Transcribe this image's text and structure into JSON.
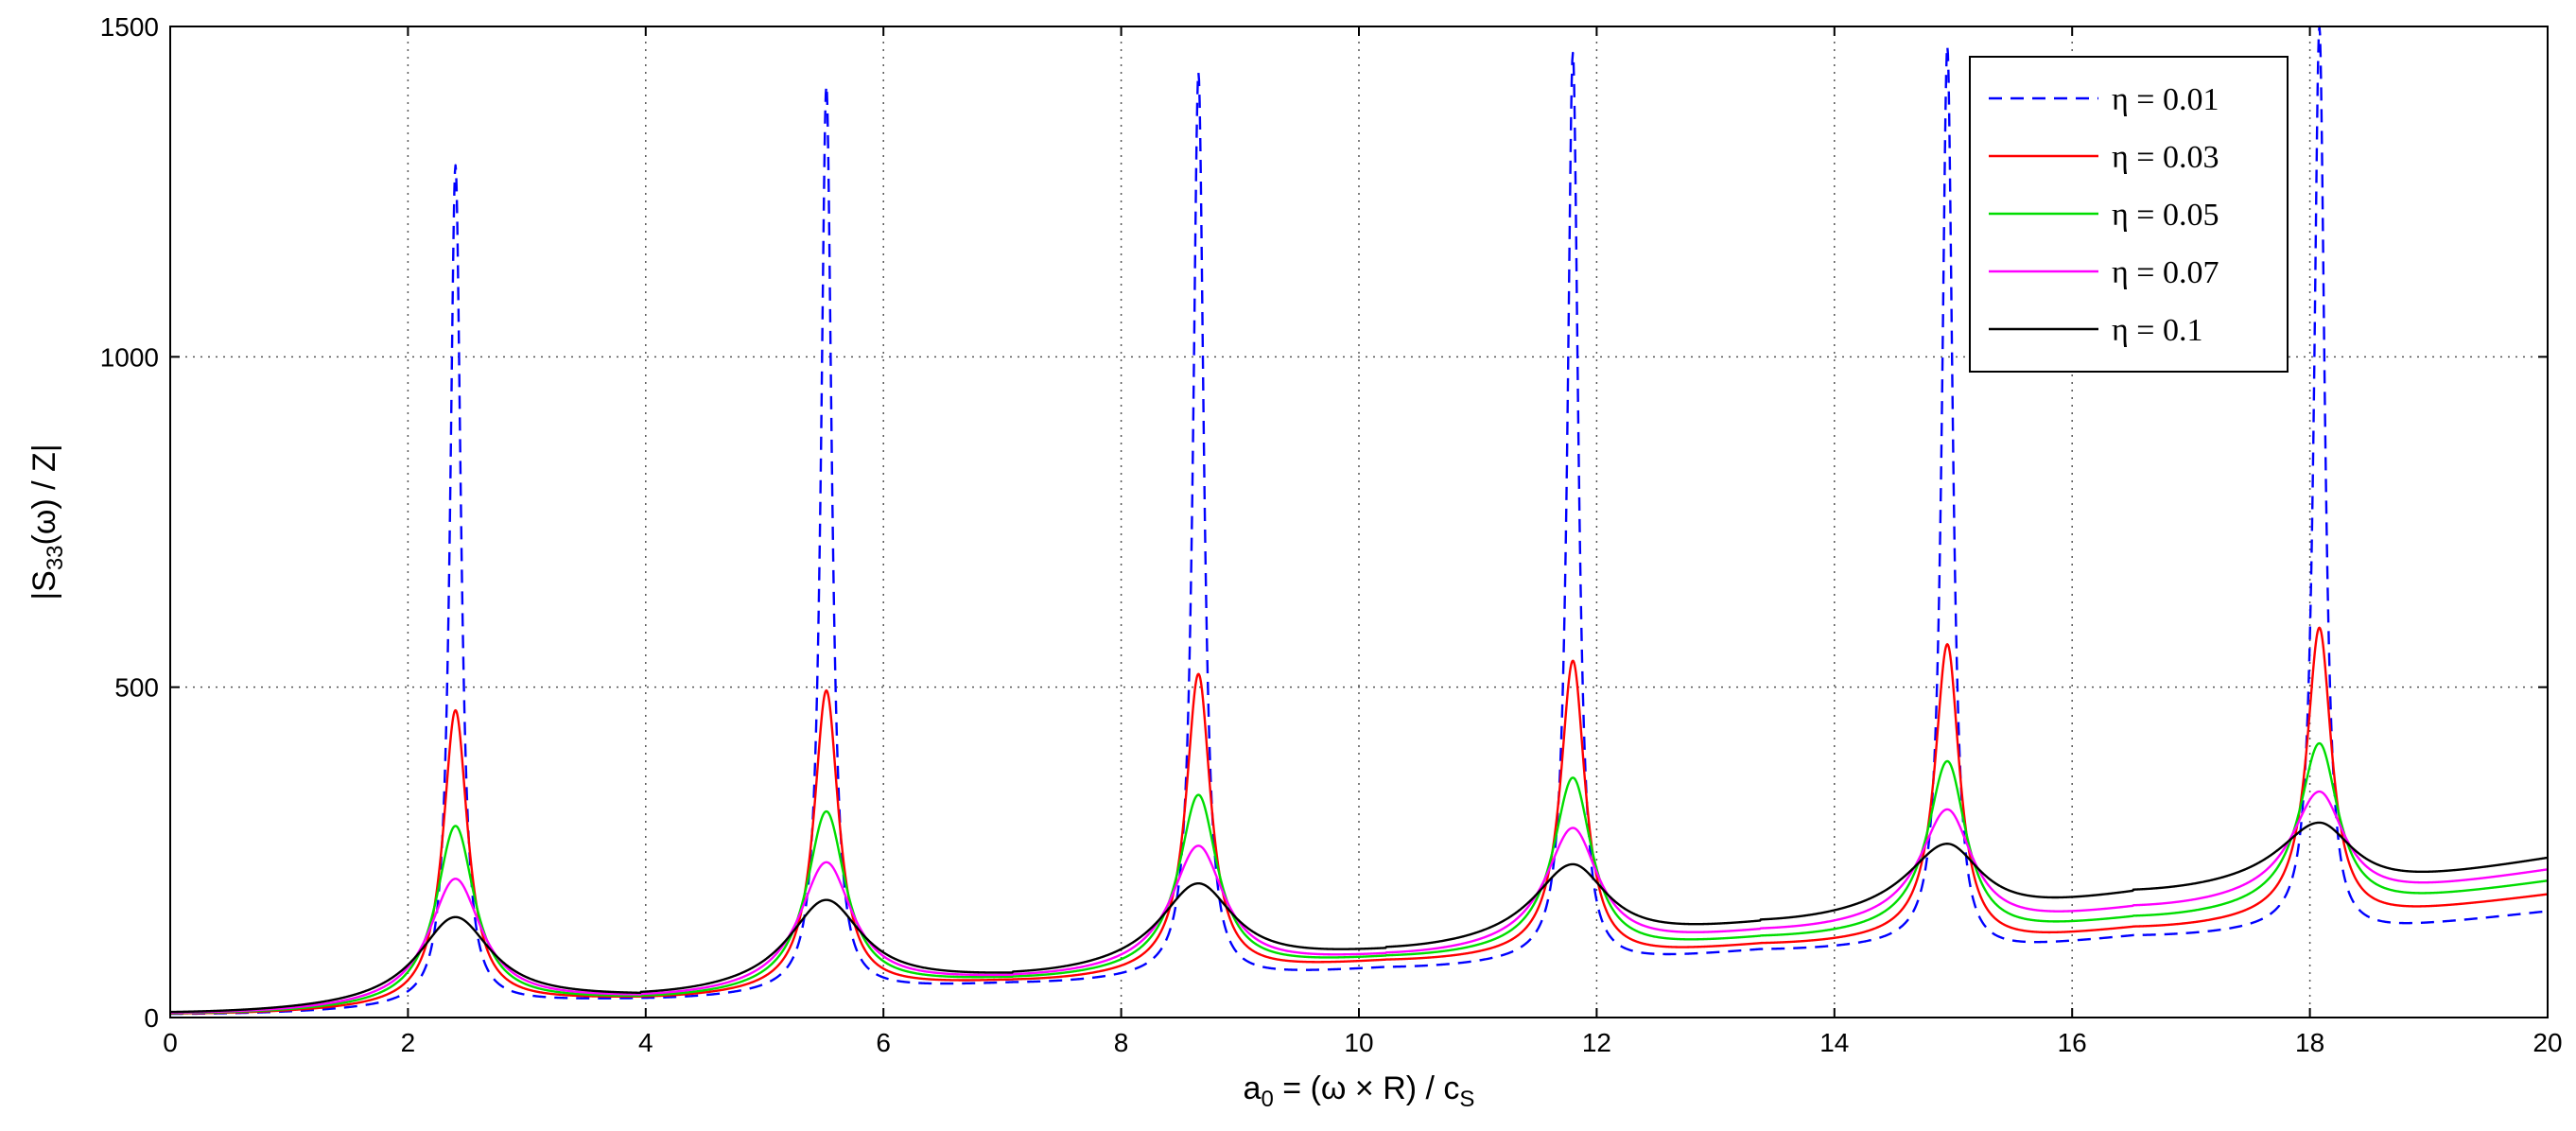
{
  "chart_data": {
    "type": "line",
    "title": "",
    "xlabel": {
      "main": "a",
      "sub": "0",
      "rest": " = (ω × R) / c",
      "sub2": "S"
    },
    "ylabel": {
      "pre": "|S",
      "sub": "33",
      "post": "(ω) / Z|"
    },
    "xlim": [
      0,
      20
    ],
    "ylim": [
      0,
      1500
    ],
    "xticks": [
      0,
      2,
      4,
      6,
      8,
      10,
      12,
      14,
      16,
      18,
      20
    ],
    "yticks": [
      0,
      500,
      1000,
      1500
    ],
    "xtick_labels": [
      "0",
      "2",
      "4",
      "6",
      "8",
      "10",
      "12",
      "14",
      "16",
      "18",
      "20"
    ],
    "ytick_labels": [
      "0",
      "500",
      "1000",
      "1500"
    ],
    "grid": true,
    "legend_position": "top-right",
    "resonance_peaks_x": [
      2.4,
      5.52,
      8.65,
      11.8,
      14.95,
      18.08
    ],
    "series": [
      {
        "name": "η = 0.01",
        "color": "#0000ff",
        "style": "dashed",
        "peak_values": [
          1290,
          1410,
          1430,
          1460,
          1470,
          1500
        ],
        "min_values": [
          28,
          52,
          75,
          102,
          123,
          148
        ],
        "end_value": 160
      },
      {
        "name": "η = 0.03",
        "color": "#ff0000",
        "style": "solid",
        "peak_values": [
          465,
          495,
          520,
          540,
          565,
          590
        ],
        "min_values": [
          29,
          55,
          85,
          110,
          135,
          175
        ],
        "end_value": 185
      },
      {
        "name": "η = 0.05",
        "color": "#00dd00",
        "style": "solid",
        "peak_values": [
          290,
          312,
          337,
          363,
          388,
          415
        ],
        "min_values": [
          29,
          58,
          90,
          120,
          150,
          195
        ],
        "end_value": 205
      },
      {
        "name": "η = 0.07",
        "color": "#ff00ff",
        "style": "solid",
        "peak_values": [
          210,
          235,
          260,
          287,
          315,
          342
        ],
        "min_values": [
          30,
          60,
          93,
          130,
          165,
          210
        ],
        "end_value": 222
      },
      {
        "name": "η = 0.1",
        "color": "#000000",
        "style": "solid",
        "peak_values": [
          152,
          178,
          203,
          232,
          263,
          295
        ],
        "min_values": [
          31,
          62,
          100,
          142,
          188,
          232
        ],
        "end_value": 240
      }
    ]
  }
}
